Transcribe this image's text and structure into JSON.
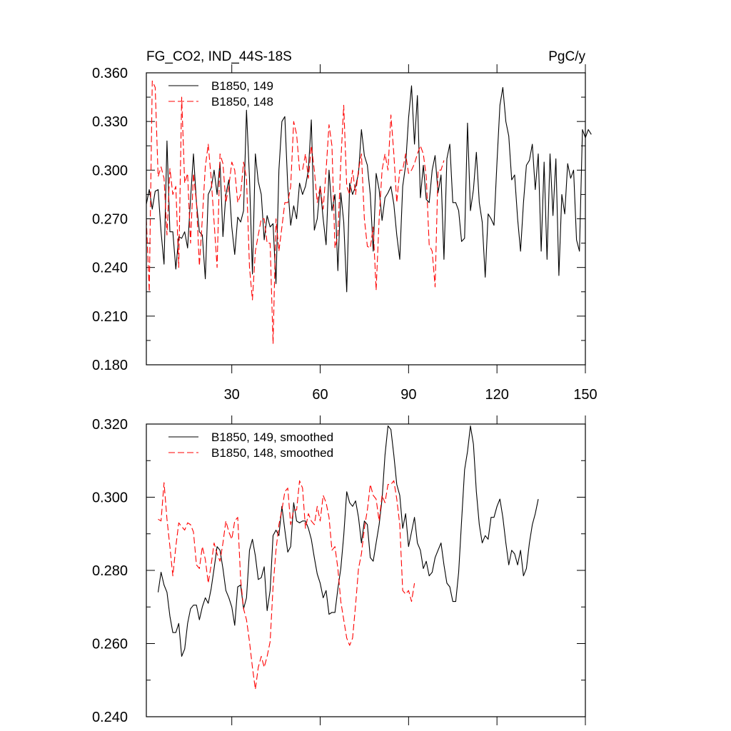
{
  "chart_data": [
    {
      "type": "line",
      "title_left": "FG_CO2, IND_44S-18S",
      "title_right": "PgC/y",
      "xlim": [
        1,
        150
      ],
      "ylim": [
        0.18,
        0.36
      ],
      "xticks": [
        30,
        60,
        90,
        120,
        150
      ],
      "xtick_labels": [
        "30",
        "60",
        "90",
        "120",
        "150"
      ],
      "yticks": [
        0.18,
        0.21,
        0.24,
        0.27,
        0.3,
        0.33,
        0.36
      ],
      "ytick_labels": [
        "0.180",
        "0.210",
        "0.240",
        "0.270",
        "0.300",
        "0.330",
        "0.360"
      ],
      "legend_position": "top-left",
      "series": [
        {
          "name": "B1850, 149",
          "color": "#000000",
          "dash": "solid",
          "x_start": 1,
          "values": [
            0.279,
            0.288,
            0.276,
            0.287,
            0.288,
            0.262,
            0.242,
            0.318,
            0.262,
            0.262,
            0.239,
            0.259,
            0.258,
            0.262,
            0.252,
            0.282,
            0.31,
            0.28,
            0.262,
            0.26,
            0.233,
            0.285,
            0.289,
            0.3,
            0.285,
            0.305,
            0.259,
            0.285,
            0.294,
            0.265,
            0.248,
            0.271,
            0.268,
            0.275,
            0.337,
            0.295,
            0.236,
            0.31,
            0.293,
            0.285,
            0.257,
            0.272,
            0.265,
            0.267,
            0.23,
            0.3,
            0.33,
            0.333,
            0.29,
            0.266,
            0.278,
            0.27,
            0.292,
            0.285,
            0.29,
            0.3,
            0.331,
            0.263,
            0.27,
            0.29,
            0.27,
            0.254,
            0.3,
            0.275,
            0.285,
            0.238,
            0.286,
            0.268,
            0.225,
            0.292,
            0.285,
            0.29,
            0.298,
            0.325,
            0.309,
            0.303,
            0.285,
            0.25,
            0.298,
            0.288,
            0.269,
            0.283,
            0.286,
            0.29,
            0.279,
            0.26,
            0.245,
            0.29,
            0.303,
            0.332,
            0.352,
            0.316,
            0.346,
            0.283,
            0.303,
            0.282,
            0.28,
            0.3,
            0.309,
            0.286,
            0.297,
            0.245,
            0.307,
            0.316,
            0.28,
            0.28,
            0.275,
            0.256,
            0.258,
            0.329,
            0.275,
            0.288,
            0.311,
            0.28,
            0.268,
            0.234,
            0.273,
            0.27,
            0.266,
            0.305,
            0.34,
            0.351,
            0.33,
            0.321,
            0.294,
            0.297,
            0.27,
            0.25,
            0.28,
            0.303,
            0.306,
            0.316,
            0.288,
            0.31,
            0.25,
            0.305,
            0.245,
            0.31,
            0.272,
            0.307,
            0.235,
            0.285,
            0.273,
            0.304,
            0.295,
            0.3,
            0.257,
            0.25,
            0.325,
            0.32,
            0.325,
            0.322
          ]
        },
        {
          "name": "B1850, 148",
          "color": "#ff0000",
          "dash": "dashed",
          "x_start": 1,
          "values": [
            0.27,
            0.225,
            0.355,
            0.351,
            0.296,
            0.302,
            0.295,
            0.26,
            0.301,
            0.285,
            0.29,
            0.24,
            0.345,
            0.292,
            0.298,
            0.255,
            0.298,
            0.28,
            0.241,
            0.27,
            0.302,
            0.316,
            0.295,
            0.268,
            0.24,
            0.31,
            0.304,
            0.28,
            0.29,
            0.305,
            0.3,
            0.28,
            0.285,
            0.305,
            0.295,
            0.24,
            0.22,
            0.25,
            0.26,
            0.27,
            0.27,
            0.255,
            0.255,
            0.193,
            0.27,
            0.25,
            0.265,
            0.28,
            0.28,
            0.29,
            0.33,
            0.322,
            0.3,
            0.3,
            0.31,
            0.295,
            0.315,
            0.3,
            0.28,
            0.29,
            0.276,
            0.3,
            0.328,
            0.315,
            0.252,
            0.26,
            0.305,
            0.34,
            0.29,
            0.285,
            0.3,
            0.285,
            0.3,
            0.31,
            0.27,
            0.253,
            0.252,
            0.265,
            0.226,
            0.27,
            0.3,
            0.31,
            0.3,
            0.334,
            0.31,
            0.28,
            0.3,
            0.3,
            0.31,
            0.298,
            0.3,
            0.304,
            0.31,
            0.315,
            0.31,
            0.296,
            0.254,
            0.25,
            0.228,
            0.3,
            0.3,
            0.306
          ]
        }
      ]
    },
    {
      "type": "line",
      "xlim": [
        1,
        150
      ],
      "ylim": [
        0.24,
        0.32
      ],
      "xticks": [
        30,
        60,
        90,
        120,
        150
      ],
      "yticks": [
        0.24,
        0.26,
        0.28,
        0.3,
        0.32
      ],
      "ytick_labels": [
        "0.240",
        "0.260",
        "0.280",
        "0.300",
        "0.320"
      ],
      "legend_position": "top-left",
      "series": [
        {
          "name": "B1850, 149, smoothed",
          "color": "#000000",
          "dash": "solid",
          "x_start": 5,
          "values": [
            0.274,
            0.2795,
            0.276,
            0.274,
            0.2675,
            0.263,
            0.263,
            0.2655,
            0.2565,
            0.2585,
            0.2655,
            0.2695,
            0.2705,
            0.2705,
            0.2665,
            0.27,
            0.2725,
            0.271,
            0.275,
            0.2805,
            0.2865,
            0.2855,
            0.2805,
            0.2745,
            0.2725,
            0.27,
            0.265,
            0.2755,
            0.276,
            0.2695,
            0.2725,
            0.2855,
            0.2885,
            0.284,
            0.2775,
            0.278,
            0.281,
            0.269,
            0.2745,
            0.2895,
            0.291,
            0.2895,
            0.2975,
            0.291,
            0.285,
            0.2865,
            0.2985,
            0.2935,
            0.293,
            0.2935,
            0.2935,
            0.2915,
            0.2885,
            0.2835,
            0.279,
            0.2765,
            0.2725,
            0.2745,
            0.268,
            0.2685,
            0.2685,
            0.275,
            0.2805,
            0.2895,
            0.3015,
            0.2985,
            0.2975,
            0.299,
            0.2945,
            0.2875,
            0.2935,
            0.2925,
            0.2835,
            0.2825,
            0.2875,
            0.2925,
            0.2995,
            0.3115,
            0.3195,
            0.3185,
            0.3115,
            0.3035,
            0.3005,
            0.2915,
            0.2955,
            0.2865,
            0.2905,
            0.2945,
            0.2875,
            0.2855,
            0.2805,
            0.2825,
            0.2785,
            0.2795,
            0.2835,
            0.2855,
            0.2875,
            0.2815,
            0.2765,
            0.2755,
            0.2715,
            0.2715,
            0.2795,
            0.2935,
            0.3075,
            0.3125,
            0.3195,
            0.3145,
            0.3015,
            0.2925,
            0.2875,
            0.2895,
            0.2885,
            0.2945,
            0.2945,
            0.2975,
            0.2995,
            0.2945,
            0.2875,
            0.2815,
            0.2855,
            0.2845,
            0.2815,
            0.2855,
            0.2785,
            0.2805,
            0.2875,
            0.2925,
            0.2955,
            0.2995
          ]
        },
        {
          "name": "B1850, 148, smoothed",
          "color": "#ff0000",
          "dash": "dashed",
          "x_start": 5,
          "values": [
            0.294,
            0.2935,
            0.304,
            0.294,
            0.2865,
            0.2785,
            0.2865,
            0.293,
            0.292,
            0.291,
            0.293,
            0.2925,
            0.2905,
            0.2815,
            0.2805,
            0.2865,
            0.283,
            0.2765,
            0.2815,
            0.2875,
            0.2845,
            0.2825,
            0.2875,
            0.2935,
            0.2905,
            0.2885,
            0.2935,
            0.2945,
            0.2775,
            0.2695,
            0.2665,
            0.2605,
            0.2535,
            0.2475,
            0.2535,
            0.2565,
            0.2535,
            0.2565,
            0.2605,
            0.2755,
            0.2855,
            0.2925,
            0.2965,
            0.3015,
            0.3025,
            0.2925,
            0.2965,
            0.2965,
            0.3045,
            0.3025,
            0.2915,
            0.2955,
            0.2935,
            0.2925,
            0.2975,
            0.2935,
            0.3005,
            0.2985,
            0.2945,
            0.2855,
            0.2865,
            0.2805,
            0.2715,
            0.2665,
            0.2615,
            0.2595,
            0.2615,
            0.2705,
            0.2805,
            0.2845,
            0.2915,
            0.2965,
            0.3035,
            0.3005,
            0.2995,
            0.2935,
            0.3005,
            0.2985,
            0.3035,
            0.3035,
            0.3045,
            0.2995,
            0.2925,
            0.2745,
            0.2735,
            0.2745,
            0.2715,
            0.2765
          ]
        }
      ]
    }
  ]
}
